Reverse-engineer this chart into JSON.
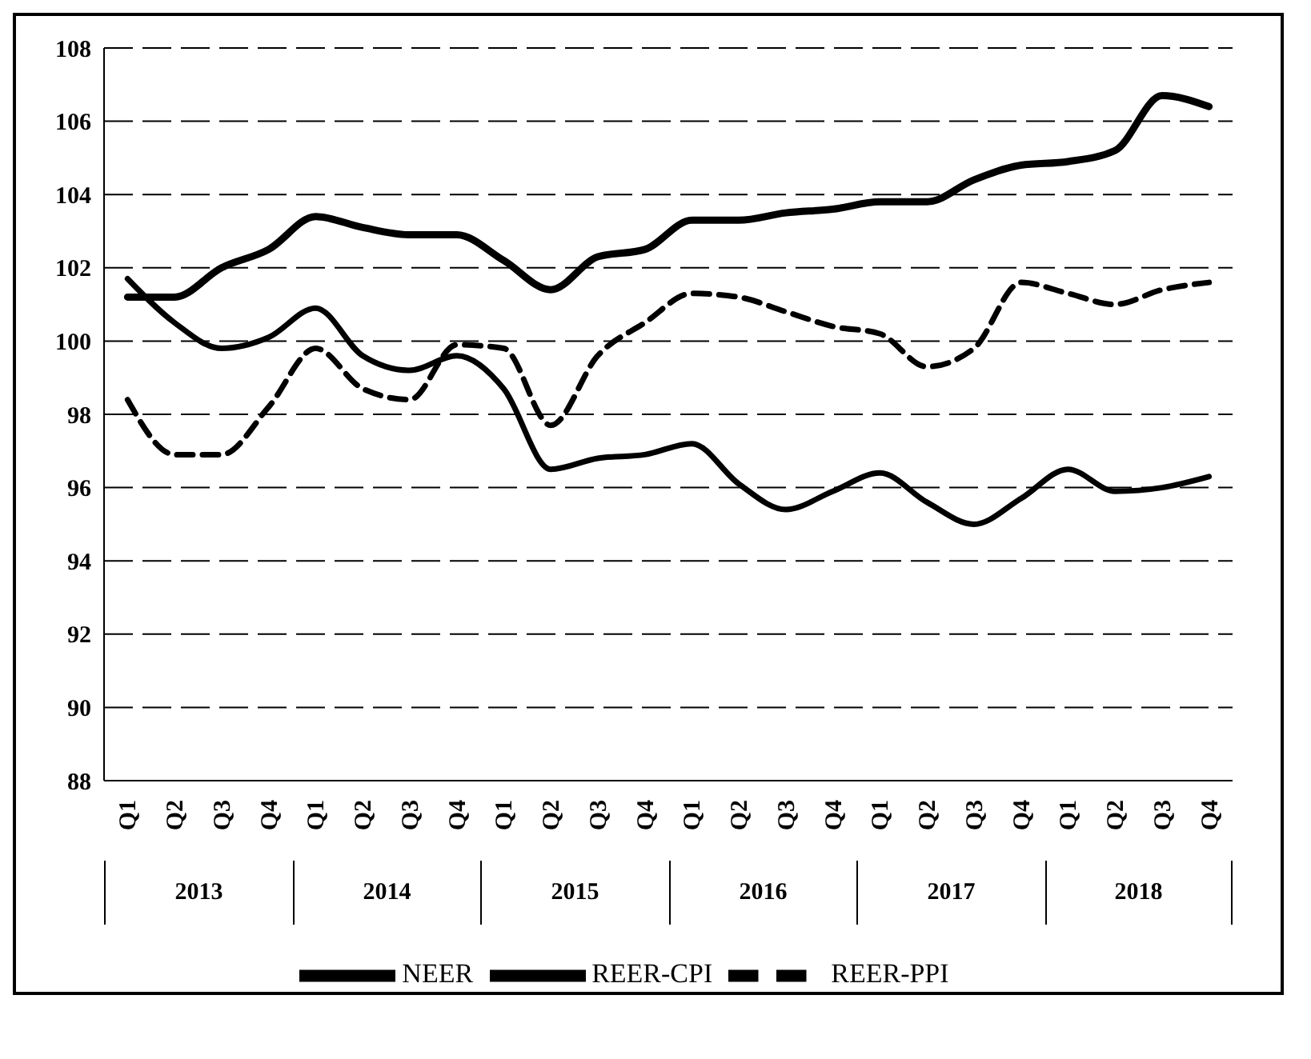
{
  "chart_data": {
    "type": "line",
    "categories": [
      "Q1",
      "Q2",
      "Q3",
      "Q4",
      "Q1",
      "Q2",
      "Q3",
      "Q4",
      "Q1",
      "Q2",
      "Q3",
      "Q4",
      "Q1",
      "Q2",
      "Q3",
      "Q4",
      "Q1",
      "Q2",
      "Q3",
      "Q4",
      "Q1",
      "Q2",
      "Q3",
      "Q4"
    ],
    "annotations": [
      "2013",
      "2014",
      "2015",
      "2016",
      "2017",
      "2018"
    ],
    "series": [
      {
        "name": "NEER",
        "color": "#000000",
        "line_style": "solid",
        "values": [
          101.2,
          101.2,
          102.0,
          102.5,
          103.4,
          103.1,
          102.9,
          102.9,
          102.2,
          101.4,
          102.3,
          102.5,
          103.3,
          103.3,
          103.5,
          103.6,
          103.8,
          103.8,
          104.4,
          104.8,
          104.9,
          105.2,
          106.7,
          106.4
        ]
      },
      {
        "name": "REER-CPI",
        "color": "#000000",
        "line_style": "solid",
        "values": [
          101.7,
          100.5,
          99.8,
          100.1,
          100.9,
          99.6,
          99.2,
          99.6,
          98.7,
          96.5,
          96.8,
          96.9,
          97.2,
          96.1,
          95.4,
          95.9,
          96.4,
          95.6,
          95.0,
          95.7,
          96.5,
          95.9,
          96.0,
          96.3
        ]
      },
      {
        "name": "REER-PPI",
        "color": "#000000",
        "line_style": "dashed",
        "values": [
          98.4,
          96.9,
          96.9,
          98.2,
          99.8,
          98.7,
          98.4,
          99.9,
          99.8,
          97.7,
          99.6,
          100.5,
          101.3,
          101.2,
          100.8,
          100.4,
          100.2,
          99.3,
          99.8,
          101.6,
          101.3,
          101.0,
          101.4,
          101.6
        ]
      }
    ],
    "ylim": [
      88,
      108
    ],
    "yticks": [
      88,
      90,
      92,
      94,
      96,
      98,
      100,
      102,
      104,
      106,
      108
    ],
    "grid": "y",
    "legend": "bottom",
    "marker": "none"
  }
}
